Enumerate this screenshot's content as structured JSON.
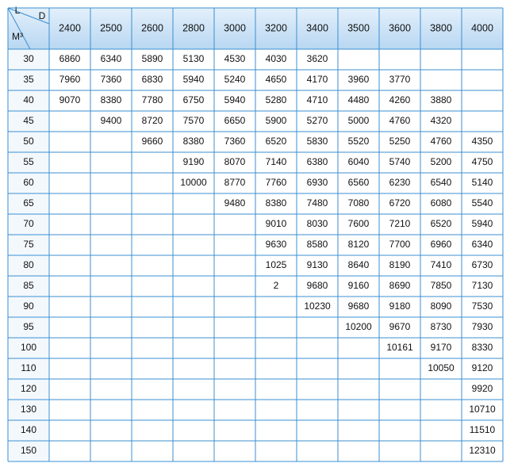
{
  "table": {
    "corner": {
      "row_label": "L",
      "col_label": "D",
      "unit": "M³"
    },
    "columns": [
      2400,
      2500,
      2600,
      2800,
      3000,
      3200,
      3400,
      3500,
      3600,
      3800,
      4000
    ],
    "rows": [
      {
        "label": 30,
        "cells": [
          6860,
          6340,
          5890,
          5130,
          4530,
          4030,
          3620,
          null,
          null,
          null,
          null
        ]
      },
      {
        "label": 35,
        "cells": [
          7960,
          7360,
          6830,
          5940,
          5240,
          4650,
          4170,
          3960,
          3770,
          null,
          null
        ]
      },
      {
        "label": 40,
        "cells": [
          9070,
          8380,
          7780,
          6750,
          5940,
          5280,
          4710,
          4480,
          4260,
          3880,
          null
        ]
      },
      {
        "label": 45,
        "cells": [
          null,
          9400,
          8720,
          7570,
          6650,
          5900,
          5270,
          5000,
          4760,
          4320,
          null
        ]
      },
      {
        "label": 50,
        "cells": [
          null,
          null,
          9660,
          8380,
          7360,
          6520,
          5830,
          5520,
          5250,
          4760,
          4350
        ]
      },
      {
        "label": 55,
        "cells": [
          null,
          null,
          null,
          9190,
          8070,
          7140,
          6380,
          6040,
          5740,
          5200,
          4750
        ]
      },
      {
        "label": 60,
        "cells": [
          null,
          null,
          null,
          10000,
          8770,
          7760,
          6930,
          6560,
          6230,
          6540,
          5140
        ]
      },
      {
        "label": 65,
        "cells": [
          null,
          null,
          null,
          null,
          9480,
          8380,
          7480,
          7080,
          6720,
          6080,
          5540
        ]
      },
      {
        "label": 70,
        "cells": [
          null,
          null,
          null,
          null,
          null,
          9010,
          8030,
          7600,
          7210,
          6520,
          5940
        ]
      },
      {
        "label": 75,
        "cells": [
          null,
          null,
          null,
          null,
          null,
          9630,
          8580,
          8120,
          7700,
          6960,
          6340
        ]
      },
      {
        "label": 80,
        "cells": [
          null,
          null,
          null,
          null,
          null,
          1025,
          9130,
          8640,
          8190,
          7410,
          6730
        ]
      },
      {
        "label": 85,
        "cells": [
          null,
          null,
          null,
          null,
          null,
          2,
          9680,
          9160,
          8690,
          7850,
          7130
        ]
      },
      {
        "label": 90,
        "cells": [
          null,
          null,
          null,
          null,
          null,
          null,
          10230,
          9680,
          9180,
          8090,
          7530
        ]
      },
      {
        "label": 95,
        "cells": [
          null,
          null,
          null,
          null,
          null,
          null,
          null,
          10200,
          9670,
          8730,
          7930
        ]
      },
      {
        "label": 100,
        "cells": [
          null,
          null,
          null,
          null,
          null,
          null,
          null,
          null,
          10161,
          9170,
          8330
        ]
      },
      {
        "label": 110,
        "cells": [
          null,
          null,
          null,
          null,
          null,
          null,
          null,
          null,
          null,
          10050,
          9120
        ]
      },
      {
        "label": 120,
        "cells": [
          null,
          null,
          null,
          null,
          null,
          null,
          null,
          null,
          null,
          null,
          9920
        ]
      },
      {
        "label": 130,
        "cells": [
          null,
          null,
          null,
          null,
          null,
          null,
          null,
          null,
          null,
          null,
          10710
        ]
      },
      {
        "label": 140,
        "cells": [
          null,
          null,
          null,
          null,
          null,
          null,
          null,
          null,
          null,
          null,
          11510
        ]
      },
      {
        "label": 150,
        "cells": [
          null,
          null,
          null,
          null,
          null,
          null,
          null,
          null,
          null,
          null,
          12310
        ]
      }
    ]
  }
}
